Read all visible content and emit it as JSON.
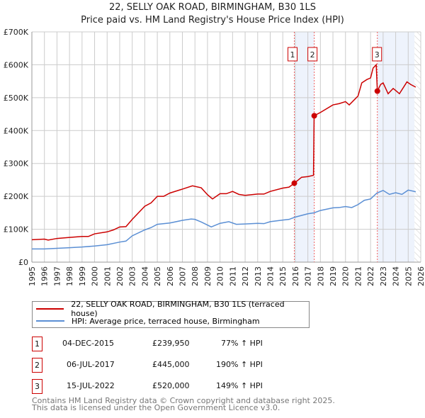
{
  "title": "22, SELLY OAK ROAD, BIRMINGHAM, B30 1LS",
  "subtitle": "Price paid vs. HM Land Registry's House Price Index (HPI)",
  "colors": {
    "price": "#cc0000",
    "hpi": "#5b8fd4",
    "shade": "#eef3fc"
  },
  "chart_data": {
    "type": "line",
    "xlim": [
      1995,
      2026
    ],
    "ylim": [
      0,
      700000
    ],
    "x_ticks": [
      "1995",
      "1996",
      "1997",
      "1998",
      "1999",
      "2000",
      "2001",
      "2002",
      "2003",
      "2004",
      "2005",
      "2006",
      "2007",
      "2008",
      "2009",
      "2010",
      "2011",
      "2012",
      "2013",
      "2014",
      "2015",
      "2016",
      "2017",
      "2018",
      "2019",
      "2020",
      "2021",
      "2022",
      "2023",
      "2024",
      "2025",
      "2026"
    ],
    "y_ticks": [
      {
        "v": 0,
        "label": "£0"
      },
      {
        "v": 100000,
        "label": "£100K"
      },
      {
        "v": 200000,
        "label": "£200K"
      },
      {
        "v": 300000,
        "label": "£300K"
      },
      {
        "v": 400000,
        "label": "£400K"
      },
      {
        "v": 500000,
        "label": "£500K"
      },
      {
        "v": 600000,
        "label": "£600K"
      },
      {
        "v": 700000,
        "label": "£700K"
      }
    ],
    "grid": true,
    "series": [
      {
        "name": "22, SELLY OAK ROAD, BIRMINGHAM, B30 1LS (terraced house)",
        "color": "#cc0000",
        "x": [
          1995,
          1996,
          1996.3,
          1997,
          1998,
          1999,
          1999.5,
          2000,
          2001,
          2001.5,
          2002,
          2002.5,
          2003,
          2004,
          2004.5,
          2005,
          2005.5,
          2006,
          2007,
          2007.8,
          2008.5,
          2009,
          2009.4,
          2010,
          2010.5,
          2011,
          2011.5,
          2012,
          2013,
          2013.5,
          2014,
          2015,
          2015.5,
          2015.92,
          2016.5,
          2017,
          2017.45,
          2017.5,
          2018,
          2019,
          2019.5,
          2020,
          2020.3,
          2021,
          2021.3,
          2021.7,
          2022,
          2022.2,
          2022.45,
          2022.54,
          2022.8,
          2023,
          2023.4,
          2023.8,
          2024,
          2024.3,
          2024.9,
          2025.2,
          2025.6
        ],
        "y": [
          68000,
          70000,
          67000,
          72000,
          75000,
          78000,
          78000,
          86000,
          92000,
          98000,
          107000,
          108000,
          130000,
          170000,
          180000,
          200000,
          200000,
          210000,
          222000,
          232000,
          226000,
          205000,
          192000,
          208000,
          208000,
          215000,
          206000,
          203000,
          207000,
          207000,
          215000,
          225000,
          228000,
          240000,
          258000,
          260000,
          264000,
          445000,
          455000,
          478000,
          482000,
          488000,
          478000,
          505000,
          545000,
          555000,
          560000,
          590000,
          600000,
          520000,
          540000,
          545000,
          512000,
          528000,
          522000,
          512000,
          548000,
          540000,
          532000
        ]
      },
      {
        "name": "HPI: Average price, terraced house, Birmingham",
        "color": "#5b8fd4",
        "x": [
          1995,
          1996,
          1997,
          1998,
          1999,
          2000,
          2001,
          2002,
          2002.5,
          2003,
          2004,
          2004.5,
          2005,
          2006,
          2007,
          2007.7,
          2008,
          2008.5,
          2009.3,
          2010,
          2010.7,
          2011.3,
          2012,
          2013,
          2013.5,
          2014,
          2015,
          2015.5,
          2016,
          2017,
          2017.5,
          2018,
          2019,
          2019.5,
          2020,
          2020.5,
          2021,
          2021.5,
          2022,
          2022.5,
          2023,
          2023.5,
          2024,
          2024.5,
          2025,
          2025.6
        ],
        "y": [
          40000,
          40000,
          42000,
          44000,
          46000,
          49000,
          53000,
          61000,
          64000,
          80000,
          98000,
          105000,
          115000,
          119000,
          127000,
          131000,
          130000,
          122000,
          107000,
          118000,
          123000,
          115000,
          116000,
          118000,
          117000,
          123000,
          128000,
          130000,
          137000,
          147000,
          150000,
          157000,
          165000,
          166000,
          169000,
          166000,
          175000,
          188000,
          192000,
          210000,
          218000,
          206000,
          211000,
          206000,
          219000,
          214000
        ]
      }
    ],
    "sales": [
      {
        "label": "1",
        "x": 2015.92,
        "y": 239950
      },
      {
        "label": "2",
        "x": 2017.51,
        "y": 445000
      },
      {
        "label": "3",
        "x": 2022.54,
        "y": 520000
      }
    ],
    "shaded": [
      [
        2015.92,
        2017.51
      ],
      [
        2022.54,
        2026
      ]
    ],
    "hatch_from": 2025.5
  },
  "legend": [
    {
      "label": "22, SELLY OAK ROAD, BIRMINGHAM, B30 1LS (terraced house)"
    },
    {
      "label": "HPI: Average price, terraced house, Birmingham"
    }
  ],
  "table": [
    {
      "num": "1",
      "date": "04-DEC-2015",
      "price": "£239,950",
      "hpi": "77% ↑ HPI"
    },
    {
      "num": "2",
      "date": "06-JUL-2017",
      "price": "£445,000",
      "hpi": "190% ↑ HPI"
    },
    {
      "num": "3",
      "date": "15-JUL-2022",
      "price": "£520,000",
      "hpi": "149% ↑ HPI"
    }
  ],
  "footer": [
    "Contains HM Land Registry data © Crown copyright and database right 2025.",
    "This data is licensed under the Open Government Licence v3.0."
  ]
}
